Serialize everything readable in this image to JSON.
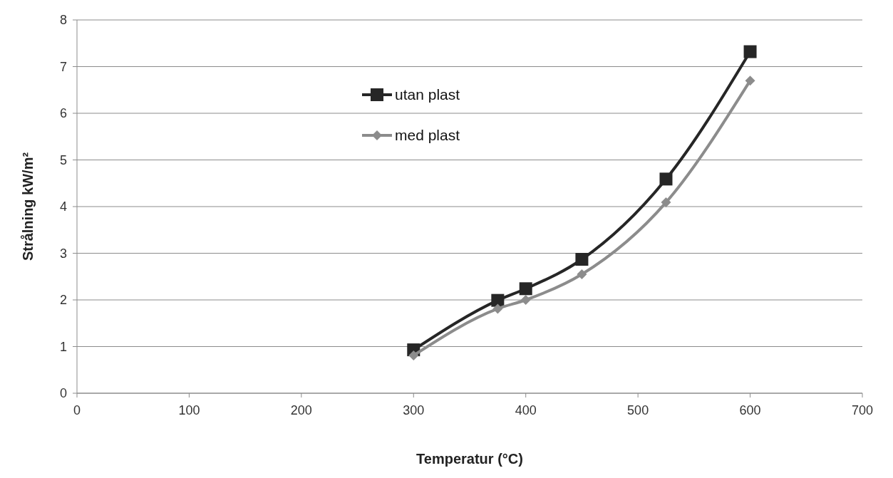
{
  "chart_data": {
    "type": "line",
    "xlabel": "Temperatur (°C)",
    "ylabel": "Strålning kW/m²",
    "xlim": [
      0,
      700
    ],
    "xticks": [
      0,
      100,
      200,
      300,
      400,
      500,
      600,
      700
    ],
    "ylim": [
      0,
      8
    ],
    "yticks": [
      0,
      1,
      2,
      3,
      4,
      5,
      6,
      7,
      8
    ],
    "grid": "y",
    "legend": "top",
    "line_style": "solid",
    "series": [
      {
        "name": "utan plast",
        "color": "#262626",
        "marker": "square",
        "x": [
          300,
          375,
          400,
          450,
          525,
          600
        ],
        "values": [
          0.93,
          1.99,
          2.24,
          2.87,
          4.59,
          7.32
        ]
      },
      {
        "name": "med plast",
        "color": "#8c8c8c",
        "marker": "diamond",
        "x": [
          300,
          375,
          400,
          450,
          525,
          600
        ],
        "values": [
          0.81,
          1.81,
          2.0,
          2.55,
          4.09,
          6.7
        ]
      }
    ]
  }
}
